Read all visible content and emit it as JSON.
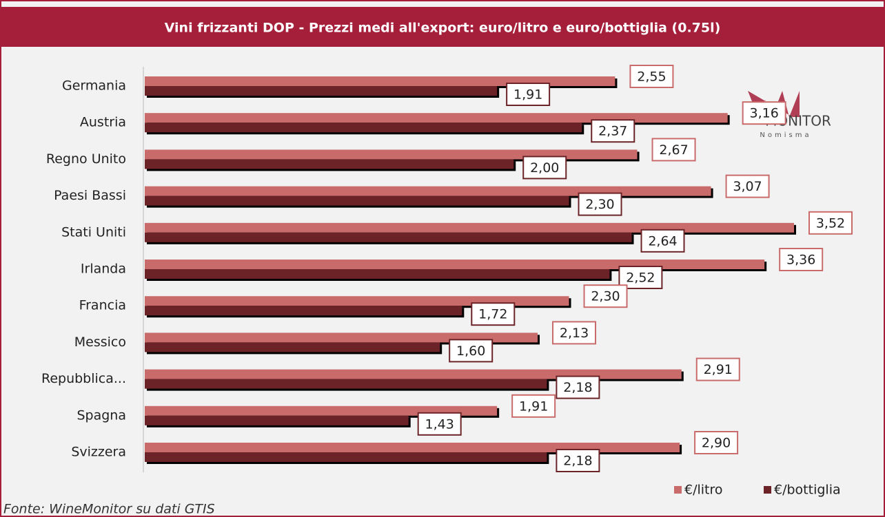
{
  "chart_data": {
    "type": "hbar",
    "title": "Vini frizzanti DOP -  Prezzi medi all'export:  euro/litro e euro/bottiglia  (0.75l)",
    "categories": [
      "Germania",
      "Austria",
      "Regno Unito",
      "Paesi Bassi",
      "Stati Uniti",
      "Irlanda",
      "Francia",
      "Messico",
      "Repubblica...",
      "Spagna",
      "Svizzera"
    ],
    "series": [
      {
        "name": "€/litro",
        "color": "#c96b6b",
        "values": [
          2.55,
          3.16,
          2.67,
          3.07,
          3.52,
          3.36,
          2.3,
          2.13,
          2.91,
          1.91,
          2.9
        ],
        "value_labels": [
          "2,55",
          "3,16",
          "2,67",
          "3,07",
          "3,52",
          "3,36",
          "2,30",
          "2,13",
          "2,91",
          "1,91",
          "2,90"
        ]
      },
      {
        "name": "€/bottiglia",
        "color": "#6b2328",
        "values": [
          1.91,
          2.37,
          2.0,
          2.3,
          2.64,
          2.52,
          1.72,
          1.6,
          2.18,
          1.43,
          2.18
        ],
        "value_labels": [
          "1,91",
          "2,37",
          "2,00",
          "2,30",
          "2,64",
          "2,52",
          "1,72",
          "1,60",
          "2,18",
          "1,43",
          "2,18"
        ]
      }
    ],
    "legend": "bottom-right",
    "source": "Fonte: WineMonitor su dati GTIS",
    "logo": {
      "text": "MONITOR",
      "subtext": "Nomisma"
    }
  }
}
